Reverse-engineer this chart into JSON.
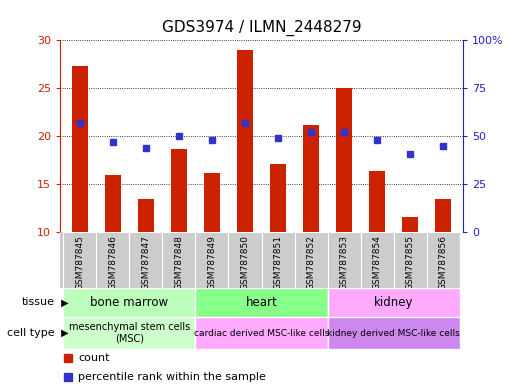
{
  "title": "GDS3974 / ILMN_2448279",
  "samples": [
    "GSM787845",
    "GSM787846",
    "GSM787847",
    "GSM787848",
    "GSM787849",
    "GSM787850",
    "GSM787851",
    "GSM787852",
    "GSM787853",
    "GSM787854",
    "GSM787855",
    "GSM787856"
  ],
  "counts": [
    27.3,
    16.0,
    13.5,
    18.7,
    16.2,
    29.0,
    17.1,
    21.2,
    25.0,
    16.4,
    11.6,
    13.5
  ],
  "percentiles_right": [
    57,
    47,
    44,
    50,
    48,
    57,
    49,
    52,
    52,
    48,
    41,
    45
  ],
  "ylim_left": [
    10,
    30
  ],
  "ylim_right": [
    0,
    100
  ],
  "yticks_left": [
    10,
    15,
    20,
    25,
    30
  ],
  "ytick_labels_left": [
    "10",
    "15",
    "20",
    "25",
    "30"
  ],
  "yticks_right": [
    0,
    25,
    50,
    75,
    100
  ],
  "ytick_labels_right": [
    "0",
    "25",
    "50",
    "75",
    "100%"
  ],
  "bar_color": "#cc2200",
  "dot_color": "#3333cc",
  "grid_color": "#000000",
  "tissue_groups": [
    {
      "label": "bone marrow",
      "start": 0,
      "end": 3,
      "color": "#bbffbb"
    },
    {
      "label": "heart",
      "start": 4,
      "end": 7,
      "color": "#88ff88"
    },
    {
      "label": "kidney",
      "start": 8,
      "end": 11,
      "color": "#ffaaff"
    }
  ],
  "celltype_groups": [
    {
      "label": "mesenchymal stem cells\n(MSC)",
      "start": 0,
      "end": 3,
      "color": "#ccffcc"
    },
    {
      "label": "cardiac derived MSC-like cells",
      "start": 4,
      "end": 7,
      "color": "#ffaaff"
    },
    {
      "label": "kidney derived MSC-like cells",
      "start": 8,
      "end": 11,
      "color": "#cc88ee"
    }
  ],
  "legend_count_label": "count",
  "legend_pct_label": "percentile rank within the sample",
  "tissue_label": "tissue",
  "celltype_label": "cell type",
  "axis_color_left": "#cc2200",
  "axis_color_right": "#2222cc",
  "bar_width": 0.5,
  "bg_color": "#ffffff",
  "sample_box_color": "#cccccc"
}
